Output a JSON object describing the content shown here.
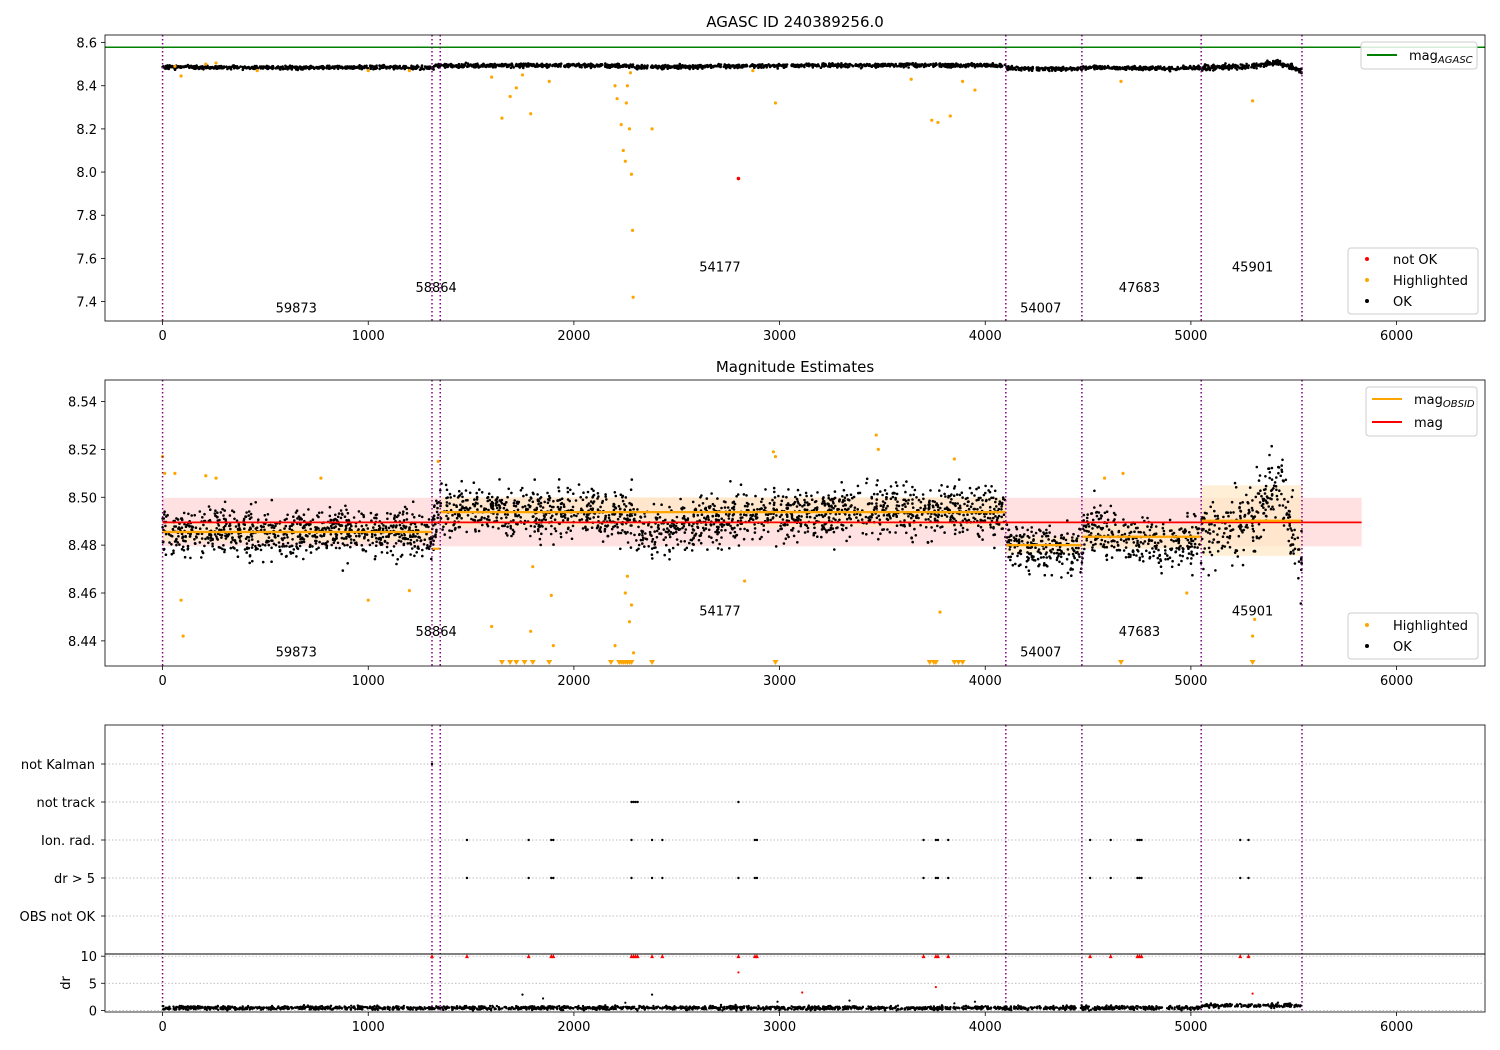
{
  "colors": {
    "ok": "#000000",
    "highlighted": "#ffa500",
    "not_ok": "#ff0000",
    "mag_agasc": "#008000",
    "mag_line": "#ff0000",
    "mag_band": "#ffdada",
    "obsid_line": "#ffa500",
    "obsid_band": "#ffe8c4",
    "obs_boundary": "#800080"
  },
  "chart_data": [
    {
      "type": "scatter",
      "title": "AGASC ID 240389256.0",
      "xlim": [
        -280,
        6430
      ],
      "ylim": [
        7.31,
        8.635
      ],
      "x_ticks": [
        0,
        1000,
        2000,
        3000,
        4000,
        5000,
        6000
      ],
      "y_ticks": [
        7.4,
        7.6,
        7.8,
        8.0,
        8.2,
        8.4,
        8.6
      ],
      "y_tick_labels": [
        "7.4",
        "7.6",
        "7.8",
        "8.0",
        "8.2",
        "8.4",
        "8.6"
      ],
      "mag_agasc": 8.578,
      "legend_lines": [
        {
          "label": "mag",
          "subscript": "AGASC",
          "color": "#008000"
        }
      ],
      "legend_points": [
        {
          "label": "not OK",
          "color": "#ff0000"
        },
        {
          "label": "Highlighted",
          "color": "#ffa500"
        },
        {
          "label": "OK",
          "color": "#000000"
        }
      ],
      "ok_trend": [
        [
          0,
          8.487
        ],
        [
          500,
          8.484
        ],
        [
          1000,
          8.486
        ],
        [
          1310,
          8.484
        ],
        [
          1345,
          8.494
        ],
        [
          2000,
          8.494
        ],
        [
          2290,
          8.492
        ],
        [
          2300,
          8.486
        ],
        [
          3000,
          8.493
        ],
        [
          3500,
          8.495
        ],
        [
          4100,
          8.494
        ],
        [
          4110,
          8.48
        ],
        [
          4470,
          8.478
        ],
        [
          4480,
          8.486
        ],
        [
          4900,
          8.48
        ],
        [
          5050,
          8.484
        ],
        [
          5300,
          8.49
        ],
        [
          5420,
          8.51
        ],
        [
          5530,
          8.473
        ]
      ],
      "highlighted_points": [
        [
          60,
          8.49
        ],
        [
          90,
          8.445
        ],
        [
          210,
          8.5
        ],
        [
          260,
          8.505
        ],
        [
          460,
          8.47
        ],
        [
          1000,
          8.47
        ],
        [
          1200,
          8.47
        ],
        [
          1600,
          8.44
        ],
        [
          1650,
          8.25
        ],
        [
          1690,
          8.35
        ],
        [
          1720,
          8.39
        ],
        [
          1750,
          8.45
        ],
        [
          1790,
          8.27
        ],
        [
          1880,
          8.42
        ],
        [
          2200,
          8.4
        ],
        [
          2210,
          8.34
        ],
        [
          2230,
          8.22
        ],
        [
          2240,
          8.1
        ],
        [
          2250,
          8.05
        ],
        [
          2255,
          8.32
        ],
        [
          2260,
          8.4
        ],
        [
          2270,
          8.2
        ],
        [
          2275,
          8.46
        ],
        [
          2280,
          7.99
        ],
        [
          2285,
          7.73
        ],
        [
          2288,
          7.42
        ],
        [
          2380,
          8.2
        ],
        [
          2870,
          8.47
        ],
        [
          2980,
          8.32
        ],
        [
          3640,
          8.43
        ],
        [
          3740,
          8.24
        ],
        [
          3770,
          8.23
        ],
        [
          3830,
          8.26
        ],
        [
          3890,
          8.42
        ],
        [
          3950,
          8.38
        ],
        [
          4660,
          8.42
        ],
        [
          5300,
          8.33
        ]
      ],
      "not_ok_points": [
        [
          2800,
          7.97
        ]
      ],
      "obs_boundaries": [
        0,
        1310,
        1350,
        4100,
        4470,
        5050,
        5540
      ],
      "obs_labels": [
        {
          "text": "59873",
          "x": 650,
          "y": 7.35
        },
        {
          "text": "58864",
          "x": 1330,
          "y": 7.445
        },
        {
          "text": "54177",
          "x": 2710,
          "y": 7.54
        },
        {
          "text": "54007",
          "x": 4270,
          "y": 7.35
        },
        {
          "text": "47683",
          "x": 4750,
          "y": 7.445
        },
        {
          "text": "45901",
          "x": 5300,
          "y": 7.54
        }
      ]
    },
    {
      "type": "scatter",
      "title": "Magnitude Estimates",
      "xlim": [
        -280,
        6430
      ],
      "ylim": [
        8.4295,
        8.549
      ],
      "x_ticks": [
        0,
        1000,
        2000,
        3000,
        4000,
        5000,
        6000
      ],
      "y_ticks": [
        8.44,
        8.46,
        8.48,
        8.5,
        8.52,
        8.54
      ],
      "y_tick_labels": [
        "8.44",
        "8.46",
        "8.48",
        "8.50",
        "8.52",
        "8.54"
      ],
      "mag": 8.4895,
      "mag_band": [
        8.4795,
        8.4998
      ],
      "legend_lines": [
        {
          "label": "mag",
          "subscript": "OBSID",
          "color": "#ffa500"
        },
        {
          "label": "mag",
          "subscript": "",
          "color": "#ff0000"
        }
      ],
      "legend_points": [
        {
          "label": "Highlighted",
          "color": "#ffa500"
        },
        {
          "label": "OK",
          "color": "#000000"
        }
      ],
      "obsid_mags": [
        {
          "x0": 0,
          "x1": 1310,
          "mag": 8.4855
        },
        {
          "x0": 1310,
          "x1": 1350,
          "mag": 8.4785
        },
        {
          "x0": 1350,
          "x1": 4100,
          "mag": 8.4938
        },
        {
          "x0": 4100,
          "x1": 4470,
          "mag": 8.48
        },
        {
          "x0": 4470,
          "x1": 5050,
          "mag": 8.4835
        },
        {
          "x0": 5050,
          "x1": 5540,
          "mag": 8.4902
        }
      ],
      "obsid_bands": [
        {
          "x0": 0,
          "x1": 1310,
          "lo": 8.4815,
          "hi": 8.4895
        },
        {
          "x0": 1350,
          "x1": 4100,
          "lo": 8.4875,
          "hi": 8.5
        },
        {
          "x0": 4100,
          "x1": 4470,
          "lo": 8.4765,
          "hi": 8.4835
        },
        {
          "x0": 4470,
          "x1": 5050,
          "lo": 8.4785,
          "hi": 8.4885
        },
        {
          "x0": 5050,
          "x1": 5540,
          "lo": 8.4755,
          "hi": 8.505
        }
      ],
      "ok_trend": [
        [
          0,
          8.487
        ],
        [
          500,
          8.484
        ],
        [
          1000,
          8.486
        ],
        [
          1310,
          8.484
        ],
        [
          1345,
          8.494
        ],
        [
          2000,
          8.494
        ],
        [
          2290,
          8.492
        ],
        [
          2300,
          8.486
        ],
        [
          3000,
          8.493
        ],
        [
          3500,
          8.495
        ],
        [
          4100,
          8.494
        ],
        [
          4110,
          8.48
        ],
        [
          4470,
          8.478
        ],
        [
          4480,
          8.486
        ],
        [
          4900,
          8.48
        ],
        [
          5050,
          8.484
        ],
        [
          5300,
          8.49
        ],
        [
          5420,
          8.51
        ],
        [
          5530,
          8.473
        ]
      ],
      "highlighted_points": [
        [
          0,
          8.517
        ],
        [
          10,
          8.51
        ],
        [
          60,
          8.51
        ],
        [
          90,
          8.457
        ],
        [
          100,
          8.442
        ],
        [
          210,
          8.509
        ],
        [
          260,
          8.508
        ],
        [
          770,
          8.508
        ],
        [
          1000,
          8.457
        ],
        [
          1200,
          8.461
        ],
        [
          1340,
          8.515
        ],
        [
          1600,
          8.446
        ],
        [
          1790,
          8.444
        ],
        [
          1800,
          8.471
        ],
        [
          1890,
          8.459
        ],
        [
          1900,
          8.438
        ],
        [
          2200,
          8.438
        ],
        [
          2250,
          8.46
        ],
        [
          2260,
          8.467
        ],
        [
          2270,
          8.448
        ],
        [
          2280,
          8.455
        ],
        [
          2290,
          8.435
        ],
        [
          2970,
          8.519
        ],
        [
          2980,
          8.517
        ],
        [
          2830,
          8.465
        ],
        [
          3470,
          8.526
        ],
        [
          3480,
          8.52
        ],
        [
          3780,
          8.452
        ],
        [
          3850,
          8.516
        ],
        [
          4580,
          8.508
        ],
        [
          4670,
          8.51
        ],
        [
          4980,
          8.46
        ],
        [
          5300,
          8.442
        ],
        [
          5310,
          8.449
        ]
      ],
      "lower_limits": [
        1650,
        1690,
        1720,
        1760,
        1800,
        1880,
        2180,
        2220,
        2230,
        2240,
        2250,
        2260,
        2270,
        2280,
        2380,
        2980,
        3730,
        3750,
        3760,
        3850,
        3870,
        3890,
        4660,
        5300
      ],
      "obs_boundaries": [
        0,
        1310,
        1350,
        4100,
        4470,
        5050,
        5540
      ],
      "obs_labels": [
        {
          "text": "59873",
          "x": 650,
          "y": 8.4335
        },
        {
          "text": "58864",
          "x": 1330,
          "y": 8.442
        },
        {
          "text": "54177",
          "x": 2710,
          "y": 8.4505
        },
        {
          "text": "54007",
          "x": 4270,
          "y": 8.4335
        },
        {
          "text": "47683",
          "x": 4750,
          "y": 8.442
        },
        {
          "text": "45901",
          "x": 5300,
          "y": 8.4505
        }
      ]
    },
    {
      "type": "scatter",
      "title": "",
      "xlim": [
        -280,
        6430
      ],
      "categories": [
        "not Kalman",
        "not track",
        "Ion. rad.",
        "dr > 5",
        "OBS not OK"
      ],
      "flag_events": {
        "not Kalman": [
          1310
        ],
        "not track": [
          2280,
          2290,
          2300,
          2310,
          2800
        ],
        "Ion. rad.": [
          1480,
          1780,
          1890,
          1900,
          2280,
          2380,
          2430,
          2880,
          2890,
          3700,
          3760,
          3770,
          3820,
          4510,
          4610,
          4740,
          4750,
          4760,
          5240,
          5280
        ],
        "dr > 5": [
          1480,
          1780,
          1890,
          1900,
          2280,
          2380,
          2430,
          2800,
          2880,
          2890,
          3700,
          3760,
          3770,
          3820,
          4510,
          4610,
          4740,
          4750,
          4760,
          5240,
          5280
        ],
        "OBS not OK": []
      },
      "obs_boundaries": [
        0,
        1310,
        1350,
        4100,
        4470,
        5050,
        5540
      ]
    },
    {
      "type": "scatter",
      "title": "",
      "xlim": [
        -280,
        6430
      ],
      "ylim": [
        -0.3,
        10.4
      ],
      "ylabel": "dr",
      "x_ticks": [
        0,
        1000,
        2000,
        3000,
        4000,
        5000,
        6000
      ],
      "y_ticks": [
        0,
        5,
        10
      ],
      "y_tick_labels": [
        "0",
        "5",
        "10"
      ],
      "dr_clipped_events": [
        1310,
        1480,
        1780,
        1890,
        1900,
        2280,
        2290,
        2300,
        2310,
        2380,
        2430,
        2800,
        2880,
        2890,
        3700,
        3760,
        3770,
        3820,
        4510,
        4610,
        4740,
        4750,
        4760,
        5240,
        5280
      ],
      "dr_outliers_red": [
        [
          2800,
          7
        ],
        [
          3110,
          3.3
        ],
        [
          3760,
          4.3
        ],
        [
          5300,
          3.1
        ]
      ],
      "dr_outliers_black": [
        [
          1750,
          2.9
        ],
        [
          1850,
          2.2
        ],
        [
          2380,
          2.9
        ],
        [
          2250,
          1.4
        ],
        [
          2990,
          1.6
        ],
        [
          3340,
          1.8
        ],
        [
          3950,
          1.6
        ],
        [
          3850,
          1.3
        ]
      ],
      "obs_boundaries": [
        0,
        1310,
        1350,
        4100,
        4470,
        5050,
        5540
      ]
    }
  ]
}
